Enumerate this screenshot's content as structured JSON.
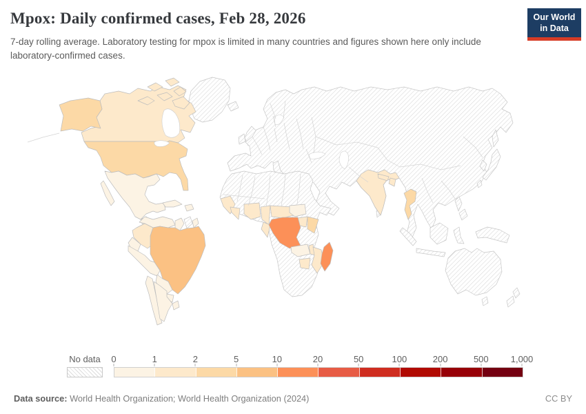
{
  "header": {
    "title": "Mpox: Daily confirmed cases, Feb 28, 2026",
    "subtitle": "7-day rolling average. Laboratory testing for mpox is limited in many countries and figures shown here only include laboratory-confirmed cases.",
    "logo": {
      "line1": "Our World",
      "line2": "in Data"
    }
  },
  "footer": {
    "source_label": "Data source:",
    "source_text": " World Health Organization; World Health Organization (2024)",
    "license": "CC BY"
  },
  "colors": {
    "brand_navy": "#1d3d63",
    "brand_red": "#d73c26",
    "title_text": "#36393d",
    "border_gray": "#c6c6c6"
  },
  "chart_data": {
    "type": "choropleth_map",
    "title": "Mpox: Daily confirmed cases, Feb 28, 2026",
    "date": "Feb 28, 2026",
    "metric": "Daily confirmed mpox cases, 7-day rolling average",
    "projection": "World",
    "legend": {
      "no_data_label": "No data",
      "no_data_style": "diagonal-hatch",
      "tick_labels": [
        "0",
        "1",
        "2",
        "5",
        "10",
        "20",
        "50",
        "100",
        "200",
        "500",
        "1,000"
      ],
      "buckets": [
        "0-1",
        "1-2",
        "2-5",
        "5-10",
        "10-20",
        "20-50",
        "50-100",
        "100-200",
        "200-500",
        "500-1000"
      ],
      "bucket_colors": [
        "#fcf3e4",
        "#fde9cb",
        "#fcd9a6",
        "#fbc183",
        "#fc9058",
        "#e75c45",
        "#cf2d20",
        "#b10a02",
        "#970008",
        "#740011"
      ]
    },
    "countries": {
      "Canada": "1-2",
      "United States": "2-5",
      "Mexico": "0-1",
      "Guatemala": "0-1",
      "Cuba": "0-1",
      "Dominican Republic": "0-1",
      "Colombia": "1-2",
      "Venezuela": "0-1",
      "Guyana": "0-1",
      "French Guiana": "0-1",
      "Ecuador": "0-1",
      "Peru": "0-1",
      "Brazil": "5-10",
      "Bolivia": "0-1",
      "Paraguay": "0-1",
      "Uruguay": "0-1",
      "Chile": "0-1",
      "Argentina": "0-1",
      "Guinea": "1-2",
      "Ghana": "1-2",
      "Nigeria": "1-2",
      "Cameroon": "1-2",
      "Central African Republic": "1-2",
      "South Sudan": "0-1",
      "Uganda": "1-2",
      "Kenya": "2-5",
      "Democratic Republic of Congo": "10-20",
      "Republic of Congo": "1-2",
      "Zambia": "0-1",
      "Malawi": "1-2",
      "Mozambique": "1-2",
      "Zimbabwe": "1-2",
      "Madagascar": "10-20",
      "India": "1-2",
      "Nepal": "1-2",
      "Bangladesh": "1-2",
      "Thailand": "2-5"
    }
  }
}
